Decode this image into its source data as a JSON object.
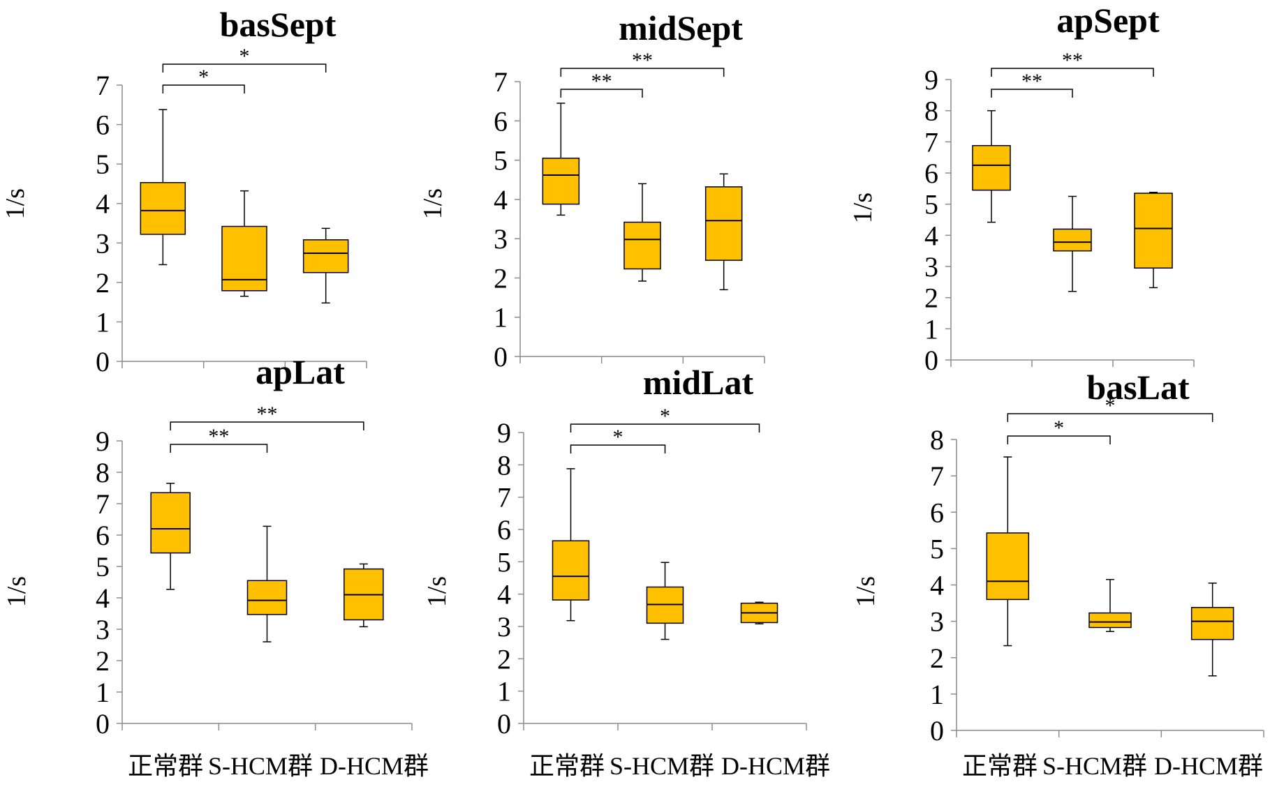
{
  "categories": [
    "正常群",
    "S-HCM群",
    "D-HCM群"
  ],
  "chart_data": [
    {
      "type": "box",
      "title": "basSept",
      "ylabel": "1/s",
      "ylim": [
        0,
        7
      ],
      "yticks": [
        0,
        1,
        2,
        3,
        4,
        5,
        6,
        7
      ],
      "box_color": "#ffc000",
      "boxes": [
        {
          "category": "正常群",
          "min": 2.45,
          "q1": 3.22,
          "median": 3.82,
          "q3": 4.53,
          "max": 6.38
        },
        {
          "category": "S-HCM群",
          "min": 1.65,
          "q1": 1.79,
          "median": 2.07,
          "q3": 3.42,
          "max": 4.32
        },
        {
          "category": "D-HCM群",
          "min": 1.48,
          "q1": 2.25,
          "median": 2.74,
          "q3": 3.08,
          "max": 3.37
        }
      ],
      "significance": [
        {
          "from": 0,
          "to": 1,
          "label": "*",
          "level": 1
        },
        {
          "from": 0,
          "to": 2,
          "label": "*",
          "level": 2
        }
      ]
    },
    {
      "type": "box",
      "title": "midSept",
      "ylabel": "1/s",
      "ylim": [
        0,
        7
      ],
      "yticks": [
        0,
        1,
        2,
        3,
        4,
        5,
        6,
        7
      ],
      "box_color": "#ffc000",
      "boxes": [
        {
          "category": "正常群",
          "min": 3.6,
          "q1": 3.88,
          "median": 4.62,
          "q3": 5.05,
          "max": 6.45
        },
        {
          "category": "S-HCM群",
          "min": 1.92,
          "q1": 2.23,
          "median": 2.98,
          "q3": 3.42,
          "max": 4.4
        },
        {
          "category": "D-HCM群",
          "min": 1.7,
          "q1": 2.45,
          "median": 3.46,
          "q3": 4.32,
          "max": 4.65
        }
      ],
      "significance": [
        {
          "from": 0,
          "to": 1,
          "label": "**",
          "level": 1
        },
        {
          "from": 0,
          "to": 2,
          "label": "**",
          "level": 2
        }
      ]
    },
    {
      "type": "box",
      "title": "apSept",
      "ylabel": "1/s",
      "ylim": [
        0,
        9
      ],
      "yticks": [
        0,
        1,
        2,
        3,
        4,
        5,
        6,
        7,
        8,
        9
      ],
      "box_color": "#ffc000",
      "boxes": [
        {
          "category": "正常群",
          "min": 4.42,
          "q1": 5.45,
          "median": 6.25,
          "q3": 6.88,
          "max": 8.0
        },
        {
          "category": "S-HCM群",
          "min": 2.2,
          "q1": 3.5,
          "median": 3.78,
          "q3": 4.2,
          "max": 5.25
        },
        {
          "category": "D-HCM群",
          "min": 2.32,
          "q1": 2.95,
          "median": 4.22,
          "q3": 5.35,
          "max": 5.38
        }
      ],
      "significance": [
        {
          "from": 0,
          "to": 1,
          "label": "**",
          "level": 1
        },
        {
          "from": 0,
          "to": 2,
          "label": "**",
          "level": 2
        }
      ]
    },
    {
      "type": "box",
      "title": "apLat",
      "ylabel": "1/s",
      "ylim": [
        0,
        9
      ],
      "yticks": [
        0,
        1,
        2,
        3,
        4,
        5,
        6,
        7,
        8,
        9
      ],
      "box_color": "#ffc000",
      "boxes": [
        {
          "category": "正常群",
          "min": 4.27,
          "q1": 5.43,
          "median": 6.2,
          "q3": 7.35,
          "max": 7.65
        },
        {
          "category": "S-HCM群",
          "min": 2.6,
          "q1": 3.47,
          "median": 3.92,
          "q3": 4.55,
          "max": 6.28
        },
        {
          "category": "D-HCM群",
          "min": 3.08,
          "q1": 3.3,
          "median": 4.1,
          "q3": 4.92,
          "max": 5.08
        }
      ],
      "significance": [
        {
          "from": 0,
          "to": 1,
          "label": "**",
          "level": 1
        },
        {
          "from": 0,
          "to": 2,
          "label": "**",
          "level": 2
        }
      ]
    },
    {
      "type": "box",
      "title": "midLat",
      "ylabel": "1/s",
      "ylim": [
        0,
        9
      ],
      "yticks": [
        0,
        1,
        2,
        3,
        4,
        5,
        6,
        7,
        8,
        9
      ],
      "box_color": "#ffc000",
      "boxes": [
        {
          "category": "正常群",
          "min": 3.18,
          "q1": 3.82,
          "median": 4.55,
          "q3": 5.65,
          "max": 7.88
        },
        {
          "category": "S-HCM群",
          "min": 2.6,
          "q1": 3.1,
          "median": 3.68,
          "q3": 4.22,
          "max": 4.98
        },
        {
          "category": "D-HCM群",
          "min": 3.08,
          "q1": 3.12,
          "median": 3.42,
          "q3": 3.72,
          "max": 3.75
        }
      ],
      "significance": [
        {
          "from": 0,
          "to": 1,
          "label": "*",
          "level": 1
        },
        {
          "from": 0,
          "to": 2,
          "label": "*",
          "level": 2
        }
      ]
    },
    {
      "type": "box",
      "title": "basLat",
      "ylabel": "1/s",
      "ylim": [
        0,
        8
      ],
      "yticks": [
        0,
        1,
        2,
        3,
        4,
        5,
        6,
        7,
        8
      ],
      "box_color": "#ffc000",
      "boxes": [
        {
          "category": "正常群",
          "min": 2.33,
          "q1": 3.6,
          "median": 4.1,
          "q3": 5.43,
          "max": 7.52
        },
        {
          "category": "S-HCM群",
          "min": 2.72,
          "q1": 2.83,
          "median": 2.98,
          "q3": 3.23,
          "max": 4.15
        },
        {
          "category": "D-HCM群",
          "min": 1.5,
          "q1": 2.5,
          "median": 3.0,
          "q3": 3.38,
          "max": 4.05
        }
      ],
      "significance": [
        {
          "from": 0,
          "to": 1,
          "label": "*",
          "level": 1
        },
        {
          "from": 0,
          "to": 2,
          "label": "*",
          "level": 2
        }
      ]
    }
  ]
}
